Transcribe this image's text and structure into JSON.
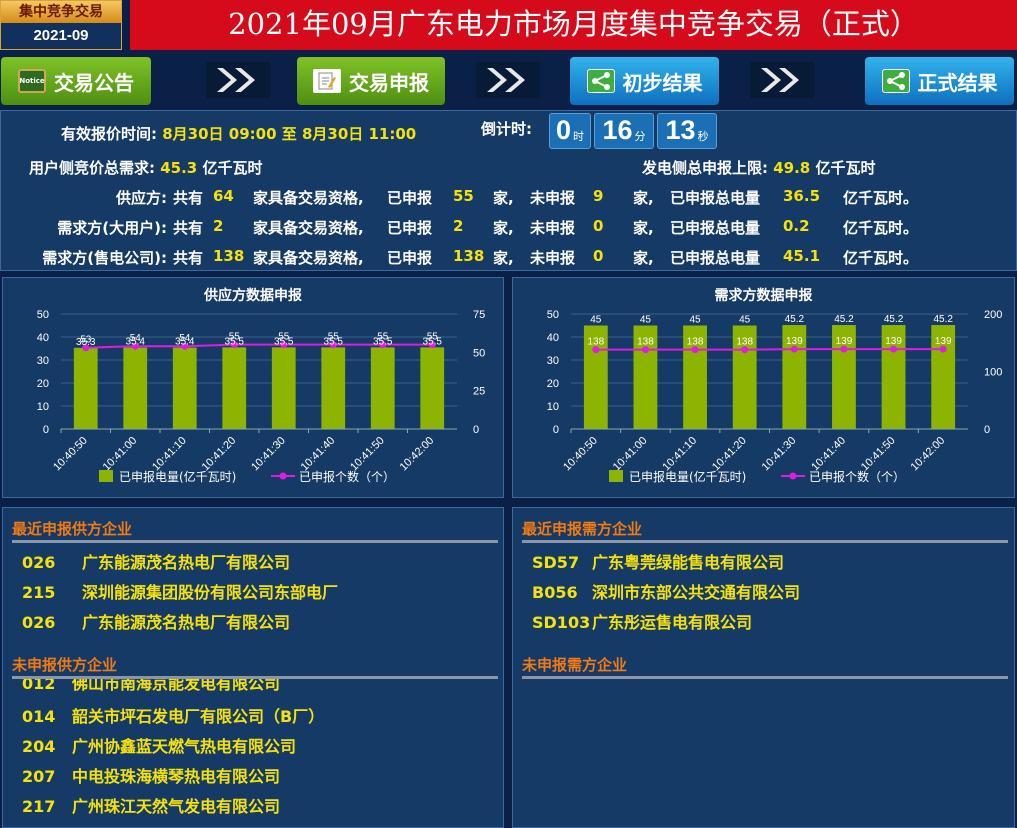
{
  "header": {
    "badge_top": "集中竞争交易",
    "badge_bottom": "2021-09",
    "title": "2021年09月广东电力市场月度集中竞争交易（正式）"
  },
  "nav": [
    {
      "label": "交易公告",
      "icon": "notice-icon",
      "icon_text": "Notice"
    },
    {
      "label": "交易申报",
      "icon": "edit-document-icon"
    },
    {
      "label": "初步结果",
      "icon": "share-icon"
    },
    {
      "label": "正式结果",
      "icon": "share-icon"
    }
  ],
  "info": {
    "valid_time_label": "有效报价时间:",
    "valid_time_value": "8月30日 09:00 至 8月30日 11:00",
    "countdown_label": "倒计时:",
    "countdown": {
      "hours": "0",
      "hours_unit": "时",
      "minutes": "16",
      "minutes_unit": "分",
      "seconds": "13",
      "seconds_unit": "秒"
    },
    "user_demand_label": "用户侧竞价总需求:",
    "user_demand_value": "45.3",
    "user_demand_unit": "亿千瓦时",
    "gen_cap_label": "发电侧总申报上限:",
    "gen_cap_value": "49.8",
    "gen_cap_unit": "亿千瓦时",
    "rows": [
      {
        "name": "供应方:",
        "total": "64",
        "declared": "55",
        "undeclared": "9",
        "volume": "36.5"
      },
      {
        "name": "需求方(大用户):",
        "total": "2",
        "declared": "2",
        "undeclared": "0",
        "volume": "0.2"
      },
      {
        "name": "需求方(售电公司):",
        "total": "138",
        "declared": "138",
        "undeclared": "0",
        "volume": "45.1"
      }
    ],
    "t_gong": "共有",
    "t_qual": "家具备交易资格,",
    "t_declared": "已申报",
    "t_jia_comma": "家,",
    "t_undeclared": "未申报",
    "t_jia": "家,",
    "t_volume": "已申报总电量",
    "t_unit": "亿千瓦时。"
  },
  "chart_data": [
    {
      "type": "bar",
      "title": "供应方数据申报",
      "categories": [
        "10:40:50",
        "10:41:00",
        "10:41:10",
        "10:41:20",
        "10:41:30",
        "10:41:40",
        "10:41:50",
        "10:42:00"
      ],
      "series": [
        {
          "name": "已申报电量(亿千瓦时)",
          "type": "bar",
          "axis": "left",
          "values": [
            35.3,
            35.4,
            35.4,
            35.5,
            35.5,
            35.5,
            35.5,
            35.5
          ],
          "labels": [
            "35.3",
            "35.4",
            "35.4",
            "35.5",
            "35.5",
            "35.5",
            "35.5",
            "35.5"
          ]
        },
        {
          "name": "已申报个数（个）",
          "type": "line",
          "axis": "right",
          "values": [
            53,
            54,
            54,
            55,
            55,
            55,
            55,
            55
          ],
          "labels": [
            "53",
            "54",
            "54",
            "55",
            "55",
            "55",
            "55",
            "55"
          ]
        }
      ],
      "ylim_left": [
        0,
        50
      ],
      "yticks_left": [
        "0",
        "10",
        "20",
        "30",
        "40",
        "50"
      ],
      "ylim_right": [
        0,
        75
      ],
      "yticks_right": [
        "0",
        "25",
        "50",
        "75"
      ],
      "legend": "bottom",
      "colors": {
        "bar": "#8cb400",
        "line": "#e01ce0"
      }
    },
    {
      "type": "bar",
      "title": "需求方数据申报",
      "categories": [
        "10:40:50",
        "10:41:00",
        "10:41:10",
        "10:41:20",
        "10:41:30",
        "10:41:40",
        "10:41:50",
        "10:42:00"
      ],
      "series": [
        {
          "name": "已申报电量(亿千瓦时)",
          "type": "bar",
          "axis": "left",
          "values": [
            45,
            45,
            45,
            45,
            45.2,
            45.2,
            45.2,
            45.2
          ],
          "labels": [
            "45",
            "45",
            "45",
            "45",
            "45.2",
            "45.2",
            "45.2",
            "45.2"
          ]
        },
        {
          "name": "已申报个数（个）",
          "type": "line",
          "axis": "right",
          "values": [
            138,
            138,
            138,
            138,
            139,
            139,
            139,
            139
          ],
          "labels": [
            "138",
            "138",
            "138",
            "138",
            "139",
            "139",
            "139",
            "139"
          ]
        }
      ],
      "ylim_left": [
        0,
        50
      ],
      "yticks_left": [
        "0",
        "10",
        "20",
        "30",
        "40",
        "50"
      ],
      "ylim_right": [
        0,
        200
      ],
      "yticks_right": [
        "0",
        "100",
        "200"
      ],
      "legend": "bottom",
      "colors": {
        "bar": "#8cb400",
        "line": "#e01ce0"
      }
    }
  ],
  "lists": {
    "recent_supply_title": "最近申报供方企业",
    "recent_supply": [
      {
        "code": "026",
        "name": "广东能源茂名热电厂有限公司"
      },
      {
        "code": "215",
        "name": "深圳能源集团股份有限公司东部电厂"
      },
      {
        "code": "026",
        "name": "广东能源茂名热电厂有限公司"
      }
    ],
    "undeclared_supply_title": "未申报供方企业",
    "undeclared_supply": [
      {
        "code": "012",
        "name": "佛山市南海京能发电有限公司"
      },
      {
        "code": "014",
        "name": "韶关市坪石发电厂有限公司（B厂）"
      },
      {
        "code": "204",
        "name": "广州协鑫蓝天燃气热电有限公司"
      },
      {
        "code": "207",
        "name": "中电投珠海横琴热电有限公司"
      },
      {
        "code": "217",
        "name": "广州珠江天然气发电有限公司"
      }
    ],
    "recent_demand_title": "最近申报需方企业",
    "recent_demand": [
      {
        "code": "SD57",
        "name": "广东粤莞绿能售电有限公司"
      },
      {
        "code": "B056",
        "name": "深圳市东部公共交通有限公司"
      },
      {
        "code": "SD103",
        "name": "广东彤运售电有限公司"
      }
    ],
    "undeclared_demand_title": "未申报需方企业"
  }
}
